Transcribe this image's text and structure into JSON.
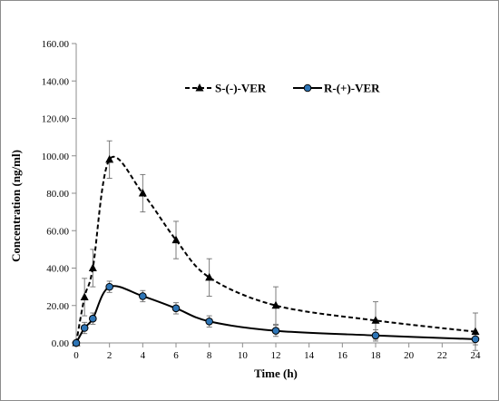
{
  "chart_data": {
    "type": "line",
    "xlabel": "Time (h)",
    "ylabel": "Concentration (ng/ml)",
    "xlim": [
      0,
      24
    ],
    "ylim": [
      0,
      160
    ],
    "x_ticks": [
      "0",
      "2",
      "4",
      "6",
      "8",
      "10",
      "12",
      "14",
      "16",
      "18",
      "20",
      "22",
      "24"
    ],
    "y_ticks": [
      "0.00",
      "20.00",
      "40.00",
      "60.00",
      "80.00",
      "100.00",
      "120.00",
      "140.00",
      "160.00"
    ],
    "grid": false,
    "legend_position": "top-center",
    "series": [
      {
        "name": "S-(-)-VER",
        "marker": "triangle",
        "line_style": "dashed",
        "color": "#000000",
        "x": [
          0,
          0.5,
          1,
          2,
          4,
          6,
          8,
          12,
          18,
          24
        ],
        "y": [
          0,
          24.5,
          40,
          98,
          80,
          55,
          35,
          20,
          12,
          6
        ],
        "error": [
          0,
          10,
          10,
          10,
          10,
          10,
          10,
          10,
          10,
          10
        ]
      },
      {
        "name": "R-(+)-VER",
        "marker": "circle",
        "line_style": "solid",
        "color": "#000000",
        "marker_fill": "#2e75b6",
        "x": [
          0,
          0.5,
          1,
          2,
          4,
          6,
          8,
          12,
          18,
          24
        ],
        "y": [
          0,
          8,
          13,
          30,
          25,
          18.5,
          11.5,
          6.5,
          4,
          2
        ],
        "error": [
          0,
          3,
          3,
          3,
          3,
          3,
          3,
          3,
          3,
          3
        ]
      }
    ]
  }
}
